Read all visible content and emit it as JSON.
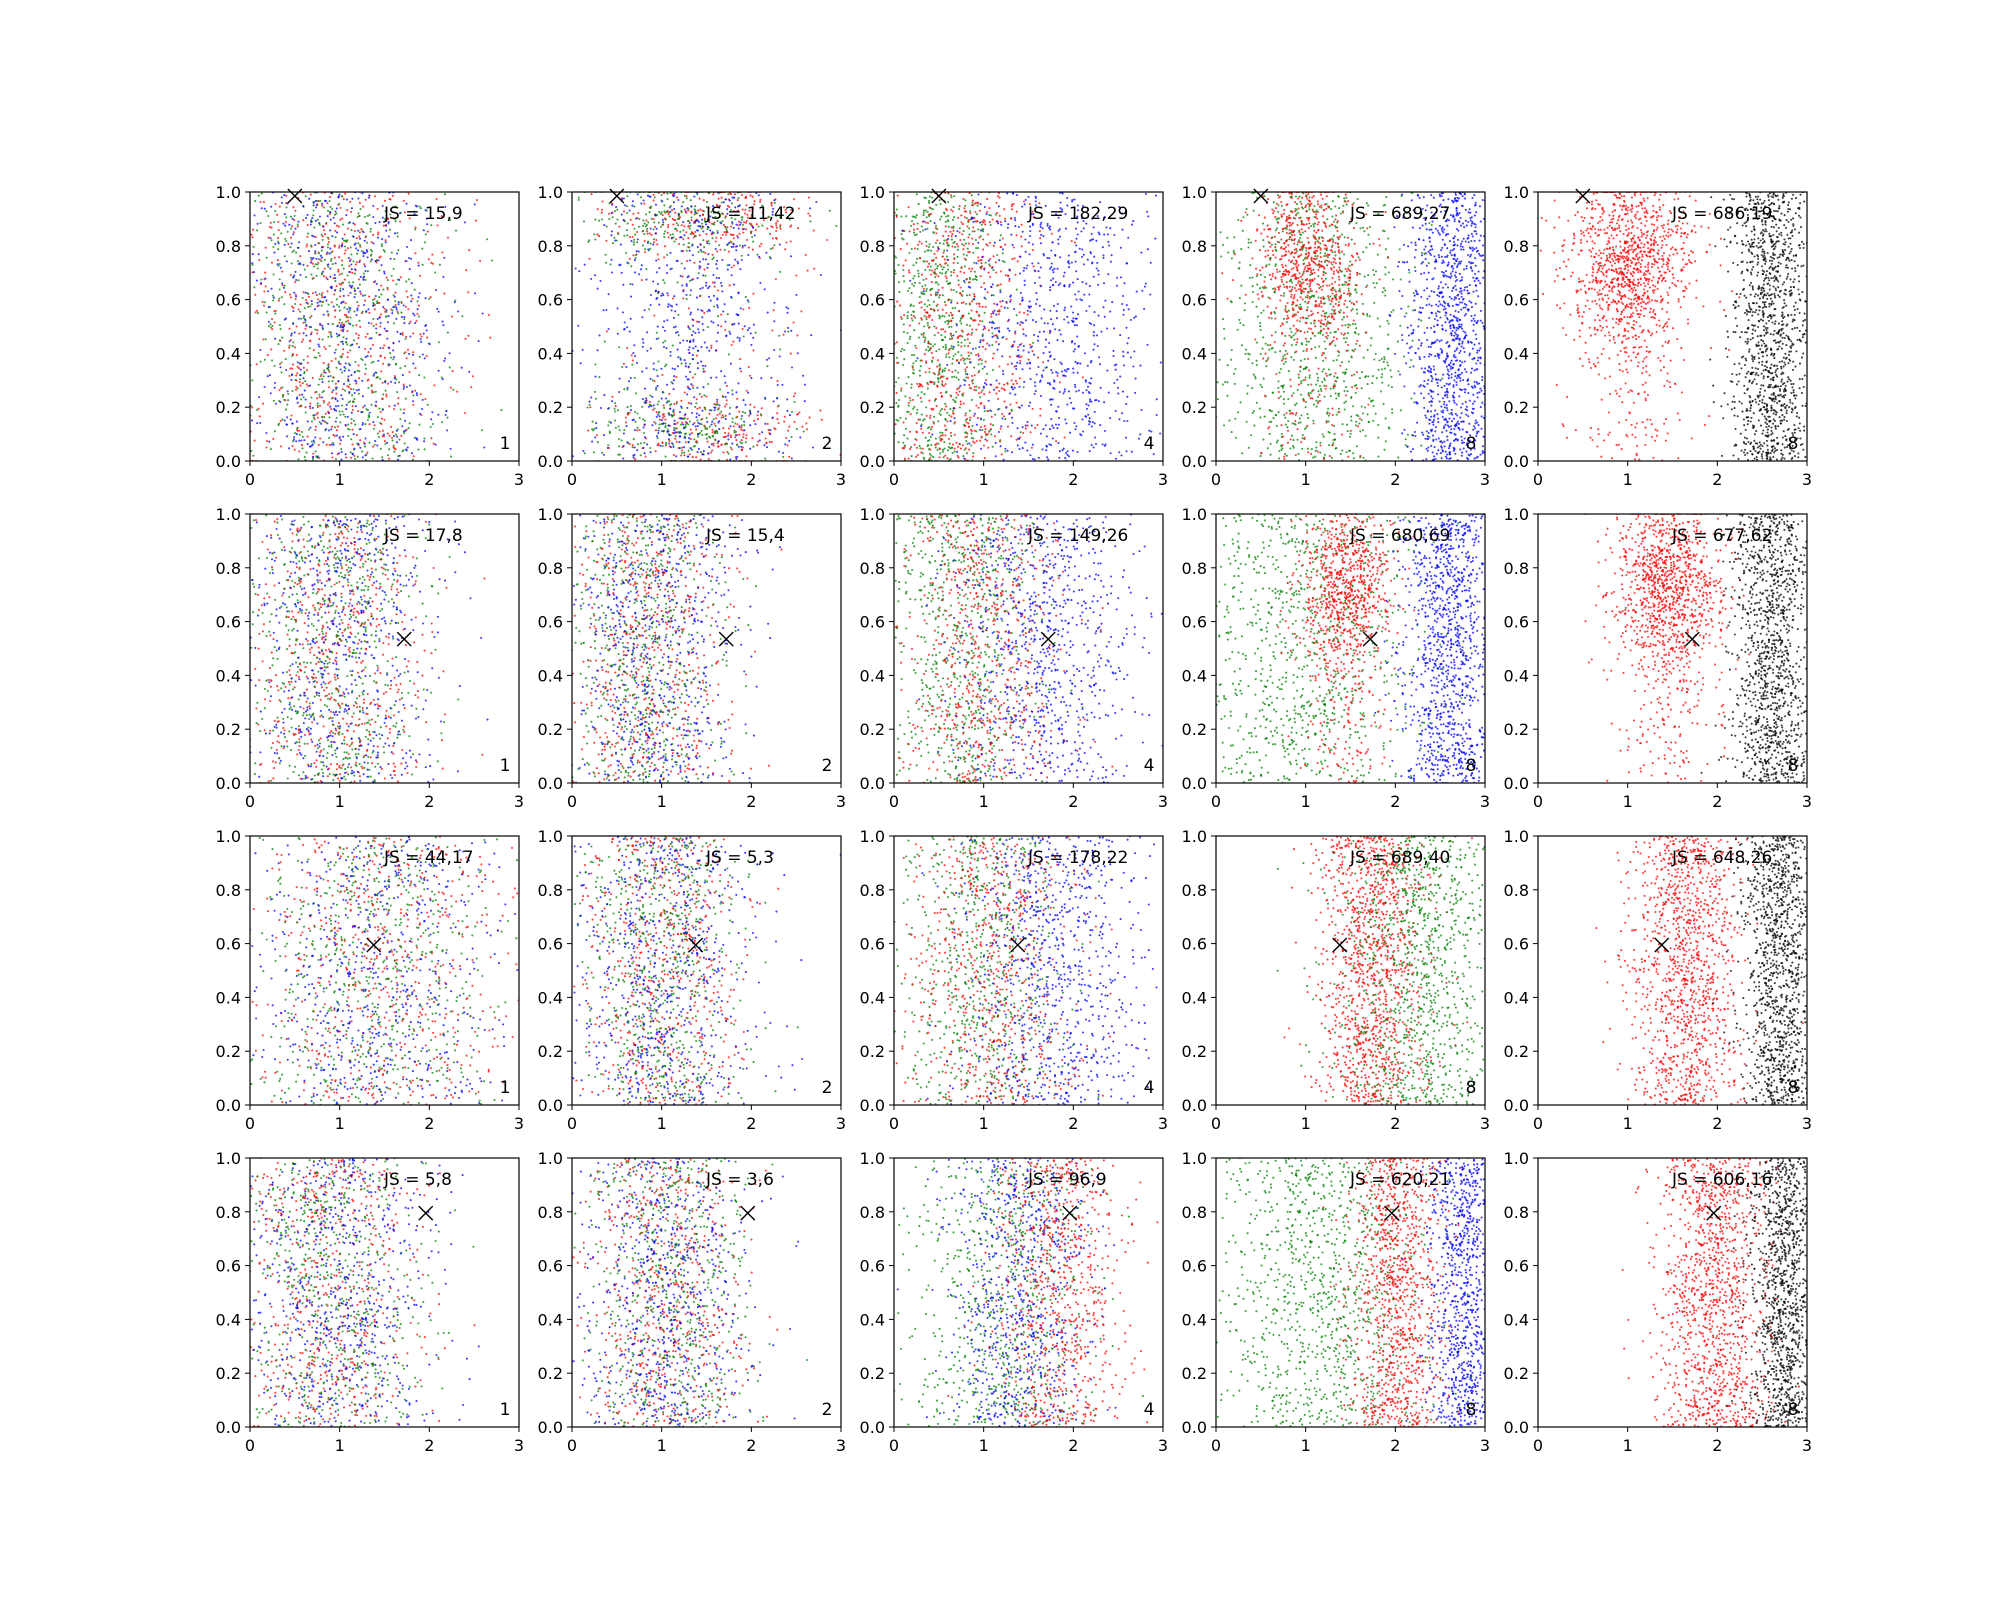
{
  "figure": {
    "rows": 4,
    "cols": 5,
    "palette": {
      "red": "#ff0000",
      "green": "#008000",
      "blue": "#0000ff",
      "black": "#000000",
      "axes": "#000000",
      "background": "#ffffff"
    }
  },
  "chart_data": {
    "type": "scatter",
    "xlim": [
      0,
      3
    ],
    "ylim": [
      0,
      1
    ],
    "xticks": [
      "0",
      "1",
      "2",
      "3"
    ],
    "yticks": [
      "0.0",
      "0.2",
      "0.4",
      "0.6",
      "0.8",
      "1.0"
    ],
    "grid": false,
    "panels": [
      {
        "js": "JS = 15,9",
        "k": "1",
        "marker": [
          0.5,
          0.985
        ],
        "clusters": [
          {
            "color": "red",
            "cx": 1.0,
            "sx": 0.6,
            "n": 600
          },
          {
            "color": "green",
            "cx": 1.0,
            "sx": 0.6,
            "n": 600
          },
          {
            "color": "blue",
            "cx": 1.1,
            "sx": 0.65,
            "n": 600
          }
        ]
      },
      {
        "js": "JS = 11,42",
        "k": "2",
        "marker": [
          0.5,
          0.985
        ],
        "clusters": [
          {
            "color": "red",
            "cx": 1.6,
            "sx": 0.6,
            "n": 600,
            "ymode": "bimodal"
          },
          {
            "color": "green",
            "cx": 1.2,
            "sx": 0.6,
            "n": 550,
            "ymode": "bimodal"
          },
          {
            "color": "blue",
            "cx": 1.3,
            "sx": 0.6,
            "n": 650
          }
        ]
      },
      {
        "js": "JS = 182,29",
        "k": "4",
        "marker": [
          0.5,
          0.985
        ],
        "clusters": [
          {
            "color": "green",
            "cx": 0.5,
            "sx": 0.35,
            "n": 700
          },
          {
            "color": "red",
            "cx": 0.8,
            "sx": 0.4,
            "n": 650
          },
          {
            "color": "blue",
            "cx": 1.8,
            "sx": 0.55,
            "n": 750
          }
        ]
      },
      {
        "js": "JS = 689,27",
        "k": "8",
        "marker": [
          0.5,
          0.985
        ],
        "clusters": [
          {
            "color": "green",
            "cx": 1.1,
            "sx": 0.55,
            "n": 900
          },
          {
            "color": "red",
            "cx": 1.05,
            "sx": 0.3,
            "n": 800,
            "ymode": "high"
          },
          {
            "color": "blue",
            "cx": 2.65,
            "sx": 0.25,
            "n": 1100
          }
        ]
      },
      {
        "js": "JS = 686,19",
        "k": "8",
        "marker": [
          0.5,
          0.985
        ],
        "clusters": [
          {
            "color": "red",
            "cx": 1.05,
            "sx": 0.35,
            "n": 1200,
            "ymode": "high"
          },
          {
            "color": "black",
            "cx": 2.6,
            "sx": 0.22,
            "n": 1200
          }
        ]
      },
      {
        "js": "JS = 17,8",
        "k": "1",
        "marker": [
          1.72,
          0.535
        ],
        "clusters": [
          {
            "color": "red",
            "cx": 0.9,
            "sx": 0.5,
            "n": 600
          },
          {
            "color": "green",
            "cx": 0.9,
            "sx": 0.5,
            "n": 600
          },
          {
            "color": "blue",
            "cx": 1.0,
            "sx": 0.55,
            "n": 600
          }
        ]
      },
      {
        "js": "JS = 15,4",
        "k": "2",
        "marker": [
          1.72,
          0.535
        ],
        "clusters": [
          {
            "color": "red",
            "cx": 0.8,
            "sx": 0.45,
            "n": 600
          },
          {
            "color": "green",
            "cx": 0.8,
            "sx": 0.45,
            "n": 600
          },
          {
            "color": "blue",
            "cx": 0.95,
            "sx": 0.5,
            "n": 650
          }
        ]
      },
      {
        "js": "JS = 149,26",
        "k": "4",
        "marker": [
          1.72,
          0.535
        ],
        "clusters": [
          {
            "color": "green",
            "cx": 0.7,
            "sx": 0.45,
            "n": 700
          },
          {
            "color": "red",
            "cx": 1.0,
            "sx": 0.45,
            "n": 650
          },
          {
            "color": "blue",
            "cx": 1.7,
            "sx": 0.5,
            "n": 800
          }
        ]
      },
      {
        "js": "JS = 680,69",
        "k": "8",
        "marker": [
          1.72,
          0.535
        ],
        "clusters": [
          {
            "color": "green",
            "cx": 0.9,
            "sx": 0.6,
            "n": 900
          },
          {
            "color": "red",
            "cx": 1.45,
            "sx": 0.25,
            "n": 900,
            "ymode": "high"
          },
          {
            "color": "blue",
            "cx": 2.6,
            "sx": 0.25,
            "n": 1100
          }
        ]
      },
      {
        "js": "JS = 677,62",
        "k": "8",
        "marker": [
          1.72,
          0.535
        ],
        "clusters": [
          {
            "color": "red",
            "cx": 1.45,
            "sx": 0.3,
            "n": 1200,
            "ymode": "high"
          },
          {
            "color": "black",
            "cx": 2.6,
            "sx": 0.22,
            "n": 1200
          }
        ]
      },
      {
        "js": "JS = 44,17",
        "k": "1",
        "marker": [
          1.38,
          0.595
        ],
        "clusters": [
          {
            "color": "red",
            "cx": 1.4,
            "sx": 0.7,
            "n": 600
          },
          {
            "color": "green",
            "cx": 1.4,
            "sx": 0.7,
            "n": 600
          },
          {
            "color": "blue",
            "cx": 1.4,
            "sx": 0.7,
            "n": 600
          }
        ]
      },
      {
        "js": "JS = 5,3",
        "k": "2",
        "marker": [
          1.38,
          0.595
        ],
        "clusters": [
          {
            "color": "red",
            "cx": 1.0,
            "sx": 0.45,
            "n": 600
          },
          {
            "color": "green",
            "cx": 1.0,
            "sx": 0.45,
            "n": 600
          },
          {
            "color": "blue",
            "cx": 1.05,
            "sx": 0.5,
            "n": 650
          }
        ]
      },
      {
        "js": "JS = 178,22",
        "k": "4",
        "marker": [
          1.38,
          0.595
        ],
        "clusters": [
          {
            "color": "green",
            "cx": 1.0,
            "sx": 0.45,
            "n": 650
          },
          {
            "color": "red",
            "cx": 1.1,
            "sx": 0.45,
            "n": 650
          },
          {
            "color": "blue",
            "cx": 1.8,
            "sx": 0.5,
            "n": 800
          }
        ]
      },
      {
        "js": "JS = 689,40",
        "k": "8",
        "marker": [
          1.38,
          0.595
        ],
        "clusters": [
          {
            "color": "red",
            "cx": 1.75,
            "sx": 0.3,
            "n": 1200
          },
          {
            "color": "green",
            "cx": 2.3,
            "sx": 0.45,
            "n": 1000
          }
        ]
      },
      {
        "js": "JS = 648,26",
        "k": "8",
        "marker": [
          1.38,
          0.595
        ],
        "clusters": [
          {
            "color": "red",
            "cx": 1.65,
            "sx": 0.3,
            "n": 1200
          },
          {
            "color": "black",
            "cx": 2.7,
            "sx": 0.2,
            "n": 1200
          }
        ]
      },
      {
        "js": "JS = 5,8",
        "k": "1",
        "marker": [
          1.96,
          0.795
        ],
        "clusters": [
          {
            "color": "red",
            "cx": 0.9,
            "sx": 0.5,
            "n": 600
          },
          {
            "color": "green",
            "cx": 0.9,
            "sx": 0.5,
            "n": 600
          },
          {
            "color": "blue",
            "cx": 1.0,
            "sx": 0.55,
            "n": 650
          }
        ]
      },
      {
        "js": "JS = 3,6",
        "k": "2",
        "marker": [
          1.96,
          0.795
        ],
        "clusters": [
          {
            "color": "red",
            "cx": 1.05,
            "sx": 0.45,
            "n": 600
          },
          {
            "color": "green",
            "cx": 1.05,
            "sx": 0.45,
            "n": 600
          },
          {
            "color": "blue",
            "cx": 1.05,
            "sx": 0.5,
            "n": 650
          }
        ]
      },
      {
        "js": "JS = 96,9",
        "k": "4",
        "marker": [
          1.96,
          0.795
        ],
        "clusters": [
          {
            "color": "green",
            "cx": 1.2,
            "sx": 0.5,
            "n": 700
          },
          {
            "color": "blue",
            "cx": 1.4,
            "sx": 0.4,
            "n": 700
          },
          {
            "color": "red",
            "cx": 1.85,
            "sx": 0.35,
            "n": 750
          }
        ]
      },
      {
        "js": "JS = 620,21",
        "k": "8",
        "marker": [
          1.96,
          0.795
        ],
        "clusters": [
          {
            "color": "green",
            "cx": 1.2,
            "sx": 0.6,
            "n": 1000
          },
          {
            "color": "red",
            "cx": 2.0,
            "sx": 0.25,
            "n": 1000
          },
          {
            "color": "blue",
            "cx": 2.75,
            "sx": 0.2,
            "n": 900
          }
        ]
      },
      {
        "js": "JS = 606,16",
        "k": "8",
        "marker": [
          1.96,
          0.795
        ],
        "clusters": [
          {
            "color": "red",
            "cx": 1.95,
            "sx": 0.3,
            "n": 1200
          },
          {
            "color": "black",
            "cx": 2.75,
            "sx": 0.2,
            "n": 1200
          }
        ]
      }
    ]
  }
}
